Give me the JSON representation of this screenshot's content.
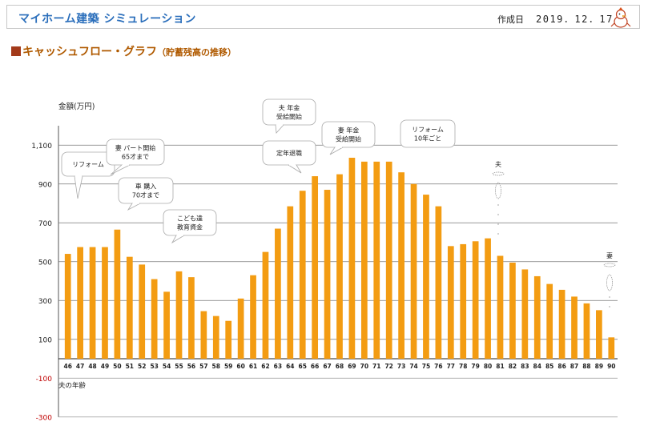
{
  "header": {
    "title": "マイホーム建築 シミュレーション",
    "date_label": "作成日",
    "date_value": "2019．12．17"
  },
  "section": {
    "title": "キャッシュフロー・グラフ",
    "subtitle": "（貯蓄残高の推移）"
  },
  "chart_data": {
    "type": "bar",
    "ylabel": "金額(万円)",
    "xlabel": "夫の年齢",
    "ylim": [
      -300,
      1200
    ],
    "yticks": [
      -300,
      -100,
      100,
      300,
      500,
      700,
      900,
      1100
    ],
    "ytick_labels": [
      "-300",
      "-100",
      "100",
      "300",
      "500",
      "700",
      "900",
      "1,100"
    ],
    "grid": true,
    "bar_color": "#f39c12",
    "categories": [
      "46",
      "47",
      "48",
      "49",
      "50",
      "51",
      "52",
      "53",
      "54",
      "55",
      "56",
      "57",
      "58",
      "59",
      "60",
      "61",
      "62",
      "63",
      "64",
      "65",
      "66",
      "67",
      "68",
      "69",
      "70",
      "71",
      "72",
      "73",
      "74",
      "75",
      "76",
      "77",
      "78",
      "79",
      "80",
      "81",
      "82",
      "83",
      "84",
      "85",
      "86",
      "87",
      "88",
      "89",
      "90"
    ],
    "values": [
      540,
      575,
      575,
      575,
      665,
      525,
      485,
      410,
      345,
      450,
      420,
      245,
      220,
      195,
      310,
      430,
      550,
      670,
      785,
      865,
      940,
      870,
      950,
      1035,
      1015,
      1015,
      1015,
      960,
      900,
      845,
      785,
      580,
      590,
      605,
      620,
      530,
      495,
      460,
      425,
      385,
      355,
      320,
      285,
      250,
      110
    ],
    "annotations": [
      {
        "id": "reform",
        "lines": [
          "リフォーム"
        ]
      },
      {
        "id": "wife-parttime",
        "lines": [
          "妻 パート開始",
          "65才まで"
        ]
      },
      {
        "id": "car",
        "lines": [
          "車 購入",
          "70才まで"
        ]
      },
      {
        "id": "education",
        "lines": [
          "こども達",
          "教育資金"
        ]
      },
      {
        "id": "husband-pension",
        "lines": [
          "夫 年金",
          "受給開始"
        ]
      },
      {
        "id": "retirement",
        "lines": [
          "定年退職"
        ]
      },
      {
        "id": "wife-pension",
        "lines": [
          "妻 年金",
          "受給開始"
        ]
      },
      {
        "id": "reform-10y",
        "lines": [
          "リフォーム",
          "10年ごと"
        ]
      },
      {
        "id": "husband-mark",
        "lines": [
          "夫"
        ]
      },
      {
        "id": "wife-mark",
        "lines": [
          "妻"
        ]
      }
    ]
  }
}
